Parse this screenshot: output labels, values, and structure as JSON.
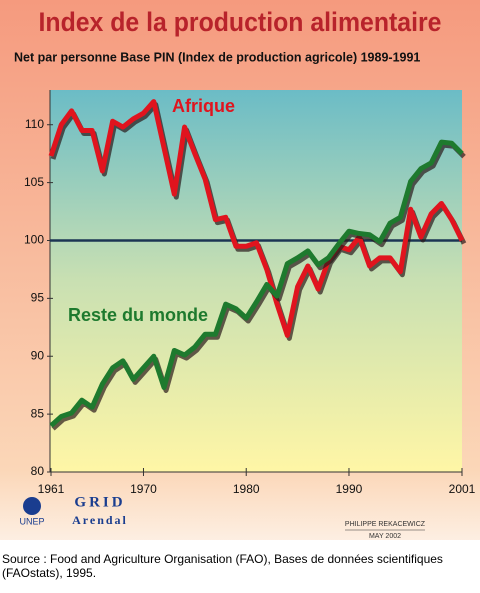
{
  "chart_data": {
    "type": "line",
    "title": "Index de la production alimentaire",
    "subtitle": "Net par personne Base PIN (Index de production agricole) 1989-1991",
    "x": [
      1961,
      1962,
      1963,
      1964,
      1965,
      1966,
      1967,
      1968,
      1969,
      1970,
      1971,
      1972,
      1973,
      1974,
      1975,
      1976,
      1977,
      1978,
      1979,
      1980,
      1981,
      1982,
      1983,
      1984,
      1985,
      1986,
      1987,
      1988,
      1989,
      1990,
      1991,
      1992,
      1993,
      1994,
      1995,
      1996,
      1997,
      1998,
      1999,
      2000,
      2001
    ],
    "series": [
      {
        "name": "Afrique",
        "color": "#e0141e",
        "values": [
          107.3,
          110,
          111.2,
          109.5,
          109.5,
          106,
          110.3,
          109.8,
          110.5,
          111,
          112,
          108,
          104,
          109.8,
          107.5,
          105.3,
          101.8,
          102,
          99.5,
          99.5,
          99.8,
          97.5,
          94.5,
          91.8,
          96,
          97.8,
          95.8,
          98.3,
          99.5,
          99.2,
          100.3,
          97.8,
          98.5,
          98.5,
          97.3,
          102.7,
          100.3,
          102.3,
          103.2,
          101.8,
          100
        ]
      },
      {
        "name": "Reste du monde",
        "color": "#1e7a2e",
        "values": [
          84,
          84.8,
          85.1,
          86.2,
          85.6,
          87.6,
          89,
          89.6,
          88,
          89,
          90,
          87.3,
          90.5,
          90.1,
          90.8,
          91.9,
          91.9,
          94.5,
          94.1,
          93.3,
          94.7,
          96.2,
          95.2,
          98,
          98.5,
          99.1,
          97.9,
          98.5,
          99.7,
          100.8,
          100.6,
          100.5,
          99.9,
          101.5,
          102,
          105.1,
          106.2,
          106.7,
          108.5,
          108.4,
          107.5
        ]
      }
    ],
    "xlim": [
      1961,
      2001
    ],
    "xticks": [
      1961,
      1970,
      1980,
      1990,
      2001
    ],
    "ylim": [
      80,
      113
    ],
    "yticks": [
      80,
      85,
      90,
      95,
      100,
      105,
      110
    ],
    "reference_line": 100
  },
  "footer": {
    "logo1": "UNEP",
    "logo2_top": "GRID",
    "logo2_bottom": "Arendal",
    "author": "PHILIPPE REKACEWICZ",
    "date": "MAY 2002",
    "source": "Source : Food and Agriculture Organisation (FAO), Bases de données scientifiques (FAOstats), 1995."
  }
}
